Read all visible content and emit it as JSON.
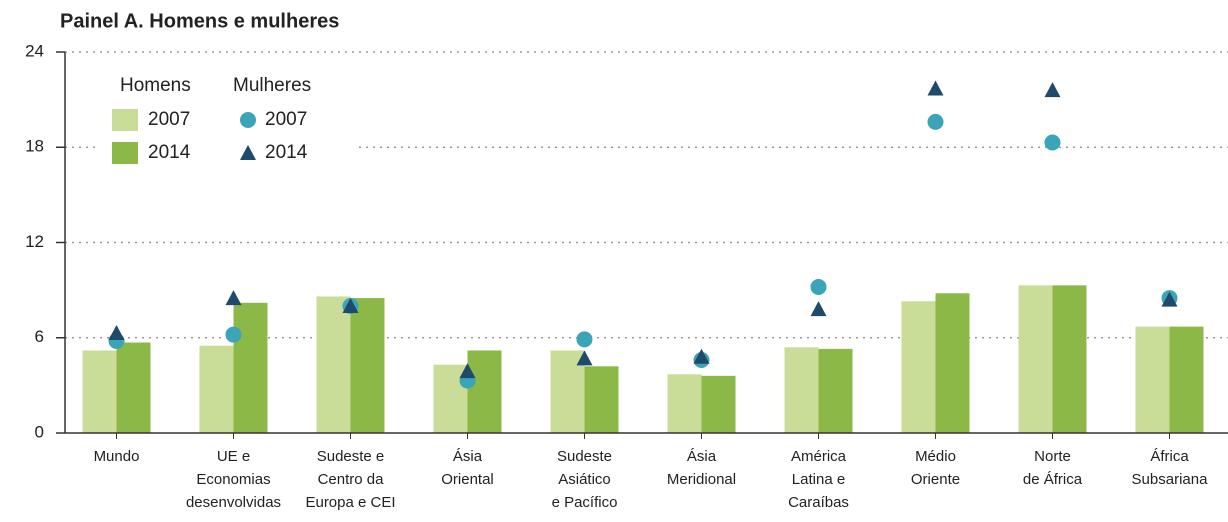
{
  "chart_data": {
    "type": "bar",
    "title": "Painel A. Homens e mulheres",
    "categories": [
      [
        "Mundo"
      ],
      [
        "UE e",
        "Economias",
        "desenvolvidas"
      ],
      [
        "Sudeste e",
        "Centro da",
        "Europa e CEI"
      ],
      [
        "Ásia",
        "Oriental"
      ],
      [
        "Sudeste",
        "Asiático",
        "e Pacífico"
      ],
      [
        "Ásia",
        "Meridional"
      ],
      [
        "América",
        "Latina e",
        "Caraíbas"
      ],
      [
        "Médio",
        "Oriente"
      ],
      [
        "Norte",
        "de África"
      ],
      [
        "África",
        "Subsariana"
      ]
    ],
    "groups": [
      {
        "name": "Homens",
        "series": [
          {
            "name": "2007",
            "marker": "bar",
            "color": "#c9dd99",
            "values": [
              5.2,
              5.5,
              8.6,
              4.3,
              5.2,
              3.7,
              5.4,
              8.3,
              9.3,
              6.7
            ]
          },
          {
            "name": "2014",
            "marker": "bar",
            "color": "#8cb848",
            "values": [
              5.7,
              8.2,
              8.5,
              5.2,
              4.2,
              3.6,
              5.3,
              8.8,
              9.3,
              6.7
            ]
          }
        ]
      },
      {
        "name": "Mulheres",
        "series": [
          {
            "name": "2007",
            "marker": "circle",
            "color": "#3aa5b8",
            "values": [
              5.8,
              6.2,
              8.0,
              3.3,
              5.9,
              4.6,
              9.2,
              19.6,
              18.3,
              8.5
            ]
          },
          {
            "name": "2014",
            "marker": "triangle",
            "color": "#1f4a6b",
            "values": [
              6.3,
              8.5,
              8.0,
              3.9,
              4.7,
              4.8,
              7.8,
              21.7,
              21.6,
              8.4
            ]
          }
        ]
      }
    ],
    "ylim": [
      0,
      24
    ],
    "yticks": [
      0,
      6,
      12,
      18,
      24
    ],
    "grid": true
  }
}
